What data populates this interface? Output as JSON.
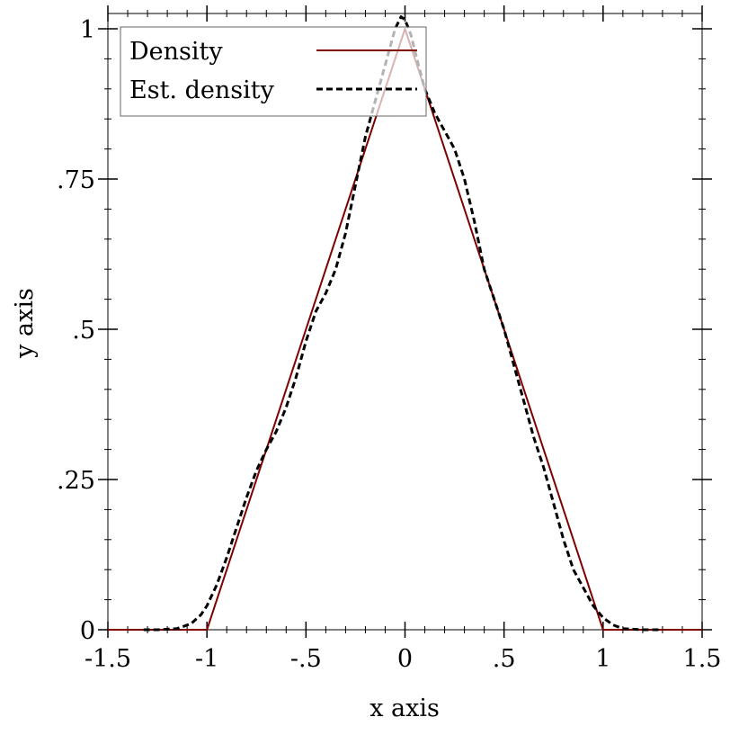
{
  "chart_data": {
    "type": "line",
    "title": "",
    "xlabel": "x axis",
    "ylabel": "y axis",
    "xlim": [
      -1.5,
      1.5
    ],
    "ylim": [
      0,
      1.02
    ],
    "x_ticks": [
      {
        "value": -1.5,
        "label": "-1.5"
      },
      {
        "value": -1.0,
        "label": "-1"
      },
      {
        "value": -0.5,
        "label": "-.5"
      },
      {
        "value": 0.0,
        "label": "0"
      },
      {
        "value": 0.5,
        "label": ".5"
      },
      {
        "value": 1.0,
        "label": "1"
      },
      {
        "value": 1.5,
        "label": "1.5"
      }
    ],
    "y_ticks": [
      {
        "value": 0,
        "label": "0"
      },
      {
        "value": 0.25,
        "label": ".25"
      },
      {
        "value": 0.5,
        "label": ".5"
      },
      {
        "value": 0.75,
        "label": ".75"
      },
      {
        "value": 1.0,
        "label": "1"
      }
    ],
    "grid": false,
    "legend_position": "top-left",
    "series": [
      {
        "name": "Density",
        "color": "#7f0000",
        "style": "solid",
        "points": [
          [
            -1.5,
            0
          ],
          [
            -1.0,
            0
          ],
          [
            0.0,
            1.0
          ],
          [
            1.0,
            0
          ],
          [
            1.5,
            0
          ]
        ]
      },
      {
        "name": "Est. density",
        "color": "#000000",
        "style": "dashed",
        "points": [
          [
            -1.32,
            0.0
          ],
          [
            -1.25,
            0.0
          ],
          [
            -1.15,
            0.002
          ],
          [
            -1.08,
            0.01
          ],
          [
            -1.03,
            0.025
          ],
          [
            -1.0,
            0.04
          ],
          [
            -0.95,
            0.075
          ],
          [
            -0.9,
            0.12
          ],
          [
            -0.85,
            0.17
          ],
          [
            -0.8,
            0.22
          ],
          [
            -0.75,
            0.265
          ],
          [
            -0.7,
            0.3
          ],
          [
            -0.65,
            0.33
          ],
          [
            -0.6,
            0.37
          ],
          [
            -0.55,
            0.42
          ],
          [
            -0.5,
            0.48
          ],
          [
            -0.45,
            0.53
          ],
          [
            -0.4,
            0.56
          ],
          [
            -0.35,
            0.6
          ],
          [
            -0.3,
            0.66
          ],
          [
            -0.25,
            0.74
          ],
          [
            -0.2,
            0.82
          ],
          [
            -0.15,
            0.88
          ],
          [
            -0.1,
            0.94
          ],
          [
            -0.05,
            1.0
          ],
          [
            -0.02,
            1.02
          ],
          [
            0.0,
            1.015
          ],
          [
            0.03,
            0.99
          ],
          [
            0.06,
            0.95
          ],
          [
            0.1,
            0.9
          ],
          [
            0.15,
            0.86
          ],
          [
            0.2,
            0.83
          ],
          [
            0.25,
            0.8
          ],
          [
            0.3,
            0.75
          ],
          [
            0.35,
            0.68
          ],
          [
            0.4,
            0.6
          ],
          [
            0.45,
            0.55
          ],
          [
            0.5,
            0.5
          ],
          [
            0.55,
            0.44
          ],
          [
            0.6,
            0.38
          ],
          [
            0.65,
            0.32
          ],
          [
            0.7,
            0.27
          ],
          [
            0.75,
            0.21
          ],
          [
            0.8,
            0.15
          ],
          [
            0.85,
            0.1
          ],
          [
            0.9,
            0.07
          ],
          [
            0.95,
            0.04
          ],
          [
            1.0,
            0.02
          ],
          [
            1.05,
            0.008
          ],
          [
            1.1,
            0.002
          ],
          [
            1.2,
            0.0
          ],
          [
            1.3,
            0.0
          ]
        ]
      }
    ]
  }
}
